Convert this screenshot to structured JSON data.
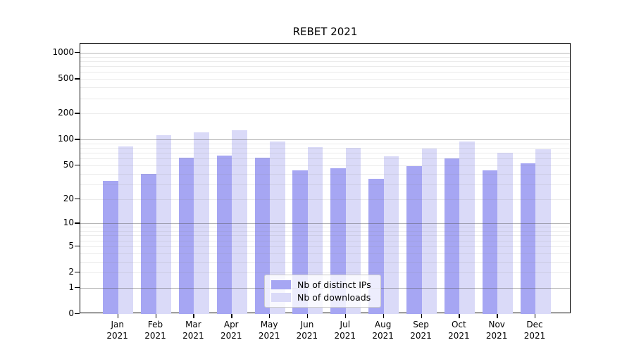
{
  "chart_data": {
    "type": "bar",
    "title": "REBET 2021",
    "categories": [
      "Jan",
      "Feb",
      "Mar",
      "Apr",
      "May",
      "Jun",
      "Jul",
      "Aug",
      "Sep",
      "Oct",
      "Nov",
      "Dec"
    ],
    "category_year": "2021",
    "series": [
      {
        "name": "Nb of distinct IPs",
        "color": "#a6a6f3",
        "values": [
          33,
          40,
          62,
          65,
          61,
          44,
          46,
          35,
          49,
          60,
          44,
          53
        ]
      },
      {
        "name": "Nb of downloads",
        "color": "#dadaf8",
        "values": [
          83,
          112,
          122,
          128,
          95,
          81,
          80,
          64,
          79,
          94,
          70,
          77
        ]
      }
    ],
    "yscale": "log1p",
    "ylim": [
      0,
      1274
    ],
    "y_ticks": [
      1000,
      500,
      200,
      100,
      50,
      20,
      10,
      5,
      2,
      1,
      0
    ],
    "grid": {
      "major": [
        1,
        10,
        100,
        1000
      ],
      "minor": [
        2,
        3,
        4,
        5,
        6,
        7,
        8,
        9,
        20,
        30,
        40,
        50,
        60,
        70,
        80,
        90,
        200,
        300,
        400,
        500,
        600,
        700,
        800,
        900
      ]
    },
    "legend_position": "lower center",
    "xlabel": "",
    "ylabel": ""
  }
}
